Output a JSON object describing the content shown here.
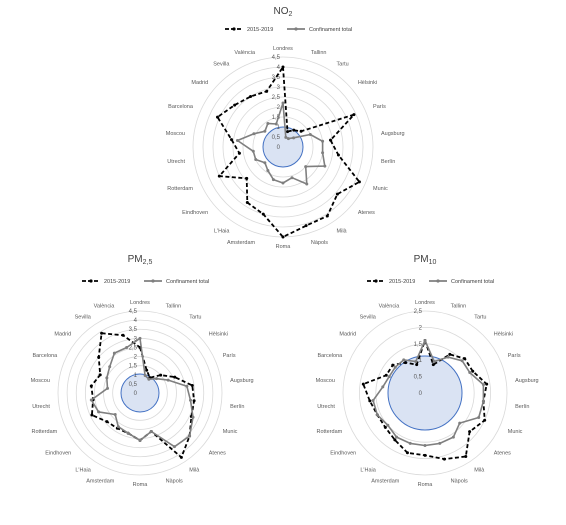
{
  "chart_data": [
    {
      "type": "radar",
      "title": "NO",
      "title_subscript": "2",
      "categories": [
        "Londres",
        "Tallinn",
        "Tartu",
        "Hèlsinki",
        "París",
        "Augsburg",
        "Berlín",
        "Munic",
        "Atenes",
        "Milà",
        "Nàpols",
        "Roma",
        "Amsterdam",
        "L'Haia",
        "Eindhoven",
        "Rotterdam",
        "Utrecht",
        "Moscou",
        "Barcelona",
        "Madrid",
        "Sevilla",
        "València"
      ],
      "ticks": [
        "0",
        "0,5",
        "1",
        "1,5",
        "2",
        "2,5",
        "3",
        "3,5",
        "4",
        "4,5"
      ],
      "rmax": 4.5,
      "grid": true,
      "legend_position": "top",
      "series": [
        {
          "name": "2015-2019",
          "style": "dashed",
          "color": "#000000",
          "values": [
            4.0,
            0.8,
            1.0,
            1.2,
            3.9,
            2.4,
            2.8,
            4.2,
            3.6,
            4.1,
            4.1,
            4.5,
            3.5,
            3.3,
            2.4,
            3.5,
            2.2,
            2.6,
            3.6,
            3.2,
            3.0,
            2.9
          ]
        },
        {
          "name": "Confinament total",
          "style": "solid",
          "color": "#7f7f7f",
          "values": [
            2.2,
            0.5,
            0.5,
            0.7,
            1.5,
            2.0,
            2.0,
            2.3,
            1.5,
            2.2,
            1.6,
            1.8,
            1.7,
            1.4,
            1.2,
            1.5,
            1.5,
            2.3,
            1.6,
            1.2,
            1.4,
            1.2
          ]
        }
      ]
    },
    {
      "type": "radar",
      "title": "PM",
      "title_subscript": "2,5",
      "categories": [
        "Londres",
        "Tallinn",
        "Tartu",
        "Hèlsinki",
        "París",
        "Augsburg",
        "Berlín",
        "Munic",
        "Atenes",
        "Milà",
        "Nàpols",
        "Roma",
        "Amsterdam",
        "L'Haia",
        "Eindhoven",
        "Rotterdam",
        "Utrecht",
        "Moscou",
        "Barcelona",
        "Madrid",
        "Sevilla",
        "València"
      ],
      "ticks": [
        "0",
        "0,5",
        "1",
        "1,5",
        "2",
        "2,5",
        "3",
        "3,5",
        "4",
        "4,5"
      ],
      "rmax": 4.5,
      "grid": true,
      "legend_position": "top",
      "series": [
        {
          "name": "2015-2019",
          "style": "dashed",
          "color": "#000000",
          "values": [
            2.5,
            1.3,
            1.0,
            1.5,
            2.1,
            2.9,
            3.0,
            3.1,
            3.6,
            4.2,
            2.2,
            2.6,
            2.3,
            2.3,
            2.4,
            2.9,
            2.6,
            2.7,
            2.4,
            3.0,
            3.9,
            3.3
          ]
        },
        {
          "name": "Confinament total",
          "style": "solid",
          "color": "#7f7f7f",
          "values": [
            3.0,
            1.0,
            0.9,
            1.2,
            1.7,
            2.6,
            2.8,
            3.2,
            3.6,
            3.5,
            2.2,
            2.6,
            2.3,
            2.2,
            1.8,
            2.5,
            2.7,
            1.8,
            2.0,
            2.2,
            2.6,
            2.6
          ]
        }
      ]
    },
    {
      "type": "radar",
      "title": "PM",
      "title_subscript": "10",
      "categories": [
        "Londres",
        "Tallinn",
        "Tartu",
        "Hèlsinki",
        "París",
        "Augsburg",
        "Berlín",
        "Munic",
        "Atenes",
        "Milà",
        "Nàpols",
        "Roma",
        "Amsterdam",
        "L'Haia",
        "Eindhoven",
        "Rotterdam",
        "Utrecht",
        "Moscou",
        "Barcelona",
        "Madrid",
        "Sevilla",
        "València"
      ],
      "ticks": [
        "0",
        "0,5",
        "1",
        "1,5",
        "2",
        "2,5"
      ],
      "rmax": 2.5,
      "grid": true,
      "legend_position": "top",
      "series": [
        {
          "name": "2015-2019",
          "style": "dashed",
          "color": "#000000",
          "values": [
            1.6,
            0.9,
            1.4,
            1.6,
            1.6,
            1.9,
            1.8,
            2.0,
            1.8,
            2.3,
            2.1,
            1.9,
            1.9,
            1.7,
            1.6,
            1.6,
            1.7,
            1.9,
            1.3,
            1.3,
            1.1,
            0.9
          ]
        },
        {
          "name": "Confinament total",
          "style": "solid",
          "color": "#7f7f7f",
          "values": [
            1.6,
            1.0,
            1.3,
            1.5,
            1.5,
            1.8,
            1.8,
            1.8,
            1.4,
            1.6,
            1.6,
            1.6,
            1.6,
            1.6,
            1.5,
            1.6,
            1.6,
            1.3,
            1.2,
            1.2,
            1.2,
            1.0
          ]
        }
      ]
    }
  ]
}
